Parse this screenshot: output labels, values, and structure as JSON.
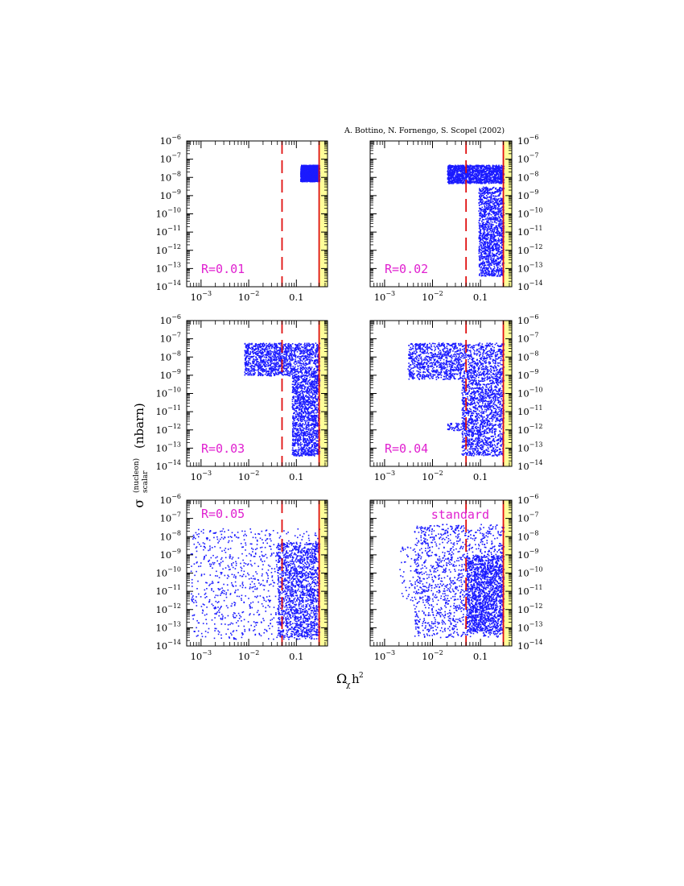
{
  "credit": "A. Bottino, N. Fornengo, S. Scopel (2002)",
  "xlabel": {
    "main": "Ω",
    "sub": "χ",
    "rest": "h",
    "sup": "2"
  },
  "ylabel": {
    "main": "σ",
    "sup": "(nucleon)",
    "sub": "scalar",
    "unit": "(nbarn)"
  },
  "colors": {
    "points": "#1a1aff",
    "dashed": "#e01010",
    "band": "#ffff99",
    "label": "#e020d0"
  },
  "chart_data": [
    {
      "type": "scatter",
      "label": "R=0.01",
      "label_pos": "bottom-left",
      "x_scale": "log",
      "y_scale": "log",
      "xlim": [
        0.0005,
        0.45
      ],
      "ylim": [
        1e-14,
        1e-06
      ],
      "xticks": [
        "10^-3",
        "10^-2",
        "0.1"
      ],
      "yticks_exponents": [
        -6,
        -7,
        -8,
        -9,
        -10,
        -11,
        -12,
        -13,
        -14
      ],
      "vertical_lines": [
        {
          "x": 0.05,
          "style": "dashed"
        },
        {
          "x": 0.3,
          "style": "solid"
        }
      ],
      "band": [
        0.3,
        0.45
      ],
      "clusters": [
        {
          "x_range": [
            0.12,
            0.3
          ],
          "y_log_range": [
            -8.2,
            -7.3
          ],
          "density": "dense"
        }
      ]
    },
    {
      "type": "scatter",
      "label": "R=0.02",
      "label_pos": "bottom-left",
      "x_scale": "log",
      "y_scale": "log",
      "xlim": [
        0.0005,
        0.45
      ],
      "ylim": [
        1e-14,
        1e-06
      ],
      "xticks": [
        "10^-3",
        "10^-2",
        "0.1"
      ],
      "yticks_exponents": [
        -6,
        -7,
        -8,
        -9,
        -10,
        -11,
        -12,
        -13,
        -14
      ],
      "vertical_lines": [
        {
          "x": 0.05,
          "style": "dashed"
        },
        {
          "x": 0.3,
          "style": "solid"
        }
      ],
      "band": [
        0.3,
        0.45
      ],
      "clusters": [
        {
          "x_range": [
            0.02,
            0.3
          ],
          "y_log_range": [
            -8.3,
            -7.3
          ],
          "density": "dense"
        },
        {
          "x_range": [
            0.09,
            0.3
          ],
          "y_log_range": [
            -13.4,
            -8.5
          ],
          "density": "dense"
        }
      ]
    },
    {
      "type": "scatter",
      "label": "R=0.03",
      "label_pos": "bottom-left",
      "x_scale": "log",
      "y_scale": "log",
      "xlim": [
        0.0005,
        0.45
      ],
      "ylim": [
        1e-14,
        1e-06
      ],
      "xticks": [
        "10^-3",
        "10^-2",
        "0.1"
      ],
      "yticks_exponents": [
        -6,
        -7,
        -8,
        -9,
        -10,
        -11,
        -12,
        -13,
        -14
      ],
      "vertical_lines": [
        {
          "x": 0.05,
          "style": "dashed"
        },
        {
          "x": 0.3,
          "style": "solid"
        }
      ],
      "band": [
        0.3,
        0.45
      ],
      "clusters": [
        {
          "x_range": [
            0.008,
            0.3
          ],
          "y_log_range": [
            -9.0,
            -7.2
          ],
          "density": "dense"
        },
        {
          "x_range": [
            0.08,
            0.3
          ],
          "y_log_range": [
            -13.4,
            -9.0
          ],
          "density": "dense"
        }
      ]
    },
    {
      "type": "scatter",
      "label": "R=0.04",
      "label_pos": "bottom-left",
      "x_scale": "log",
      "y_scale": "log",
      "xlim": [
        0.0005,
        0.45
      ],
      "ylim": [
        1e-14,
        1e-06
      ],
      "xticks": [
        "10^-3",
        "10^-2",
        "0.1"
      ],
      "yticks_exponents": [
        -6,
        -7,
        -8,
        -9,
        -10,
        -11,
        -12,
        -13,
        -14
      ],
      "vertical_lines": [
        {
          "x": 0.05,
          "style": "dashed"
        },
        {
          "x": 0.3,
          "style": "solid"
        }
      ],
      "band": [
        0.3,
        0.45
      ],
      "clusters": [
        {
          "x_range": [
            0.003,
            0.3
          ],
          "y_log_range": [
            -9.2,
            -7.2
          ],
          "density": "dense"
        },
        {
          "x_range": [
            0.04,
            0.3
          ],
          "y_log_range": [
            -13.4,
            -9.2
          ],
          "density": "dense"
        },
        {
          "x_range": [
            0.02,
            0.05
          ],
          "y_log_range": [
            -12.0,
            -11.6
          ],
          "density": "sparse"
        }
      ]
    },
    {
      "type": "scatter",
      "label": "R=0.05",
      "label_pos": "top-left",
      "x_scale": "log",
      "y_scale": "log",
      "xlim": [
        0.0005,
        0.45
      ],
      "ylim": [
        1e-14,
        1e-06
      ],
      "xticks": [
        "10^-3",
        "10^-2",
        "0.1"
      ],
      "yticks_exponents": [
        -6,
        -7,
        -8,
        -9,
        -10,
        -11,
        -12,
        -13,
        -14
      ],
      "vertical_lines": [
        {
          "x": 0.05,
          "style": "dashed"
        },
        {
          "x": 0.3,
          "style": "solid"
        }
      ],
      "band": [
        0.3,
        0.45
      ],
      "clusters": [
        {
          "x_range": [
            0.0006,
            0.3
          ],
          "y_log_range": [
            -13.6,
            -7.5
          ],
          "density": "medium"
        },
        {
          "x_range": [
            0.04,
            0.3
          ],
          "y_log_range": [
            -13.5,
            -8.3
          ],
          "density": "dense"
        }
      ]
    },
    {
      "type": "scatter",
      "label": "standard",
      "label_pos": "top-right",
      "x_scale": "log",
      "y_scale": "log",
      "xlim": [
        0.0005,
        0.45
      ],
      "ylim": [
        1e-14,
        1e-06
      ],
      "xticks": [
        "10^-3",
        "10^-2",
        "0.1"
      ],
      "yticks_exponents": [
        -6,
        -7,
        -8,
        -9,
        -10,
        -11,
        -12,
        -13,
        -14
      ],
      "vertical_lines": [
        {
          "x": 0.05,
          "style": "dashed"
        },
        {
          "x": 0.3,
          "style": "solid"
        }
      ],
      "band": [
        0.3,
        0.45
      ],
      "clusters": [
        {
          "x_range": [
            0.004,
            0.3
          ],
          "y_log_range": [
            -13.5,
            -7.3
          ],
          "density": "dense"
        },
        {
          "x_range": [
            0.002,
            0.006
          ],
          "y_log_range": [
            -11.5,
            -8.5
          ],
          "density": "sparse"
        },
        {
          "x_range": [
            0.05,
            0.3
          ],
          "y_log_range": [
            -13.2,
            -9.0
          ],
          "density": "dense"
        }
      ]
    }
  ]
}
